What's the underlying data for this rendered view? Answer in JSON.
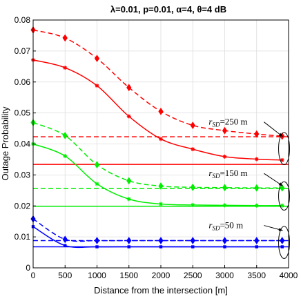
{
  "chart_data": {
    "type": "line",
    "title": "λ=0.01, p=0.01, α=4, θ=4 dB",
    "xlabel": "Distance from the intersection [m]",
    "ylabel": "Outage Probability",
    "xlim": [
      0,
      4000
    ],
    "ylim": [
      0,
      0.08
    ],
    "xticks": [
      0,
      500,
      1000,
      1500,
      2000,
      2500,
      3000,
      3500,
      4000
    ],
    "yticks": [
      0,
      0.01,
      0.02,
      0.03,
      0.04,
      0.05,
      0.06,
      0.07,
      0.08
    ],
    "xtick_labels": [
      "0",
      "500",
      "1000",
      "1500",
      "2000",
      "2500",
      "3000",
      "3500",
      "4000"
    ],
    "ytick_labels": [
      "0",
      "0.01",
      "0.02",
      "0.03",
      "0.04",
      "0.05",
      "0.06",
      "0.07",
      "0.08"
    ],
    "grid": true,
    "series": [
      {
        "color": "#ff0000",
        "style": "dashed",
        "marker": "diamond",
        "x": [
          0,
          500,
          1000,
          1500,
          2000,
          2500,
          3000,
          3500,
          3900
        ],
        "y": [
          0.0768,
          0.0742,
          0.0676,
          0.0582,
          0.0505,
          0.046,
          0.0443,
          0.0432,
          0.0425
        ]
      },
      {
        "color": "#ff0000",
        "style": "solid",
        "marker": "star",
        "x": [
          0,
          500,
          1000,
          1500,
          2000,
          2500,
          3000,
          3500,
          3900
        ],
        "y": [
          0.0671,
          0.0646,
          0.0588,
          0.0489,
          0.0416,
          0.0383,
          0.0359,
          0.0351,
          0.0348
        ]
      },
      {
        "color": "#ff0000",
        "style": "dashed",
        "marker": "none",
        "x": [
          0,
          4000
        ],
        "y": [
          0.0423,
          0.0423
        ]
      },
      {
        "color": "#ff0000",
        "style": "solid",
        "marker": "none",
        "x": [
          0,
          4000
        ],
        "y": [
          0.0334,
          0.0334
        ]
      },
      {
        "color": "#00ee00",
        "style": "dashed",
        "marker": "diamond",
        "x": [
          0,
          500,
          1000,
          1500,
          2000,
          2500,
          3000,
          3500,
          3900
        ],
        "y": [
          0.0469,
          0.0427,
          0.0333,
          0.0281,
          0.0264,
          0.026,
          0.0259,
          0.0258,
          0.0258
        ]
      },
      {
        "color": "#00ee00",
        "style": "solid",
        "marker": "star",
        "x": [
          0,
          500,
          1000,
          1500,
          2000,
          2500,
          3000,
          3500,
          3900
        ],
        "y": [
          0.04,
          0.0361,
          0.0271,
          0.0222,
          0.0206,
          0.0203,
          0.0202,
          0.0201,
          0.0201
        ]
      },
      {
        "color": "#00ee00",
        "style": "dashed",
        "marker": "none",
        "x": [
          0,
          4000
        ],
        "y": [
          0.0256,
          0.0256
        ]
      },
      {
        "color": "#00ee00",
        "style": "solid",
        "marker": "none",
        "x": [
          0,
          4000
        ],
        "y": [
          0.0199,
          0.0199
        ]
      },
      {
        "color": "#0000ff",
        "style": "dashed",
        "marker": "diamond",
        "x": [
          0,
          500,
          1000,
          1500,
          2000,
          2500,
          3000,
          3500,
          3900
        ],
        "y": [
          0.0158,
          0.0092,
          0.0088,
          0.0088,
          0.0088,
          0.0088,
          0.0088,
          0.0088,
          0.0088
        ]
      },
      {
        "color": "#0000ff",
        "style": "solid",
        "marker": "square",
        "x": [
          0,
          500,
          1000,
          1500,
          2000,
          2500,
          3000,
          3500,
          3900
        ],
        "y": [
          0.0133,
          0.0072,
          0.0068,
          0.0068,
          0.0068,
          0.0068,
          0.0068,
          0.0068,
          0.0068
        ]
      },
      {
        "color": "#0000ff",
        "style": "dashed",
        "marker": "none",
        "x": [
          0,
          4000
        ],
        "y": [
          0.0088,
          0.0088
        ]
      },
      {
        "color": "#0000ff",
        "style": "solid",
        "marker": "none",
        "x": [
          0,
          4000
        ],
        "y": [
          0.0068,
          0.0068
        ]
      }
    ],
    "annotations": [
      {
        "var": "r",
        "sub": "SD",
        "value": "=250 m",
        "x": 2750,
        "y": 0.0462,
        "ex": 3930,
        "ey": 0.0385,
        "erx": 5,
        "ery": 0.0052
      },
      {
        "var": "r",
        "sub": "SD",
        "value": "=150 m",
        "x": 2750,
        "y": 0.0296,
        "ex": 3930,
        "ey": 0.0232,
        "erx": 5,
        "ery": 0.0046
      },
      {
        "var": "r",
        "sub": "SD",
        "value": "=50 m",
        "x": 2750,
        "y": 0.0128,
        "ex": 3930,
        "ey": 0.0082,
        "erx": 5,
        "ery": 0.0052
      }
    ]
  }
}
